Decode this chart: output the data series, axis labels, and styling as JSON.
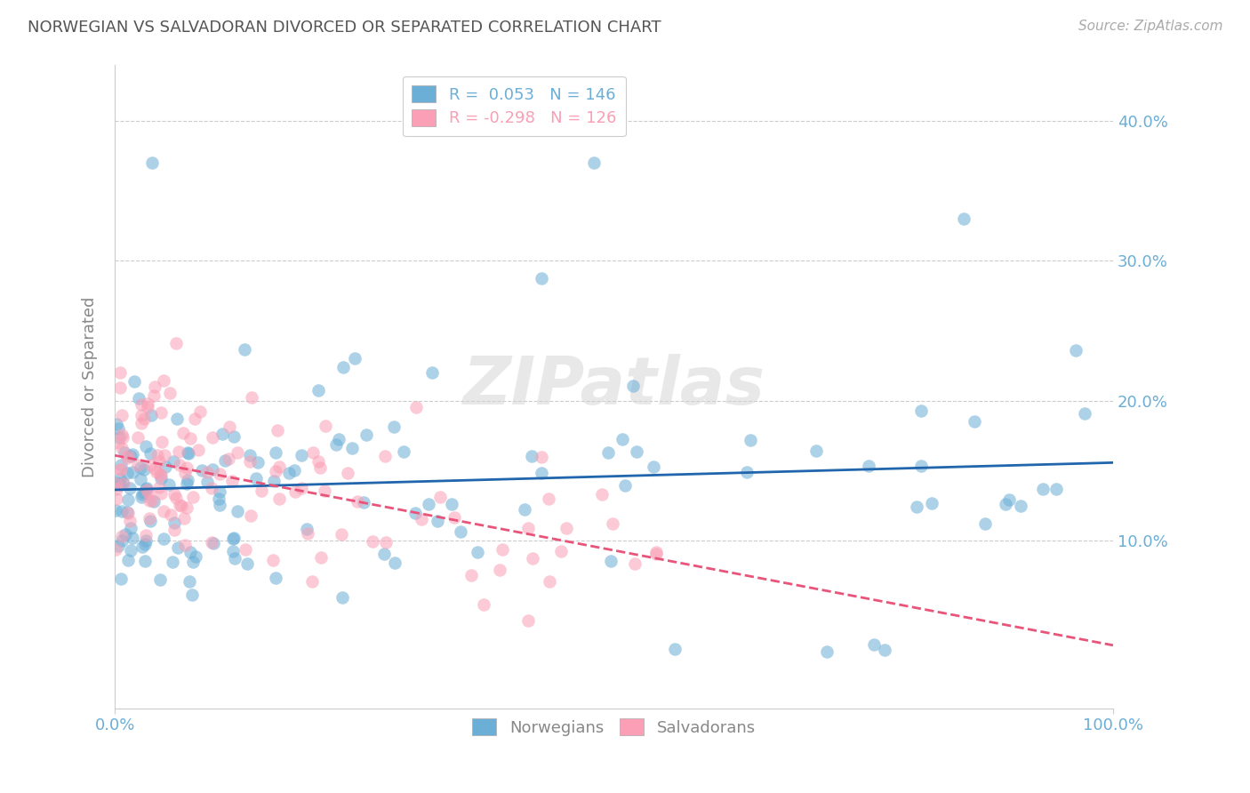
{
  "title": "NORWEGIAN VS SALVADORAN DIVORCED OR SEPARATED CORRELATION CHART",
  "source": "Source: ZipAtlas.com",
  "ylabel": "Divorced or Separated",
  "norwegian_R": 0.053,
  "norwegian_N": 146,
  "salvadoran_R": -0.298,
  "salvadoran_N": 126,
  "blue_color": "#6baed6",
  "pink_color": "#fa9fb5",
  "blue_line_color": "#2166ac",
  "pink_line_color": "#e8547a",
  "background_color": "#ffffff",
  "grid_color": "#cccccc",
  "title_color": "#555555",
  "axis_label_color": "#6baed6",
  "watermark": "ZIPatlas",
  "xlim": [
    0.0,
    1.0
  ],
  "ylim": [
    -0.02,
    0.44
  ],
  "ytick_vals": [
    0.1,
    0.2,
    0.3,
    0.4
  ],
  "ytick_labels": [
    "10.0%",
    "20.0%",
    "30.0%",
    "40.0%"
  ],
  "xtick_vals": [
    0.0,
    1.0
  ],
  "xtick_labels": [
    "0.0%",
    "100.0%"
  ],
  "legend_labels": [
    "Norwegians",
    "Salvadorans"
  ],
  "title_fontsize": 13,
  "source_fontsize": 11,
  "tick_fontsize": 13,
  "ylabel_fontsize": 13
}
